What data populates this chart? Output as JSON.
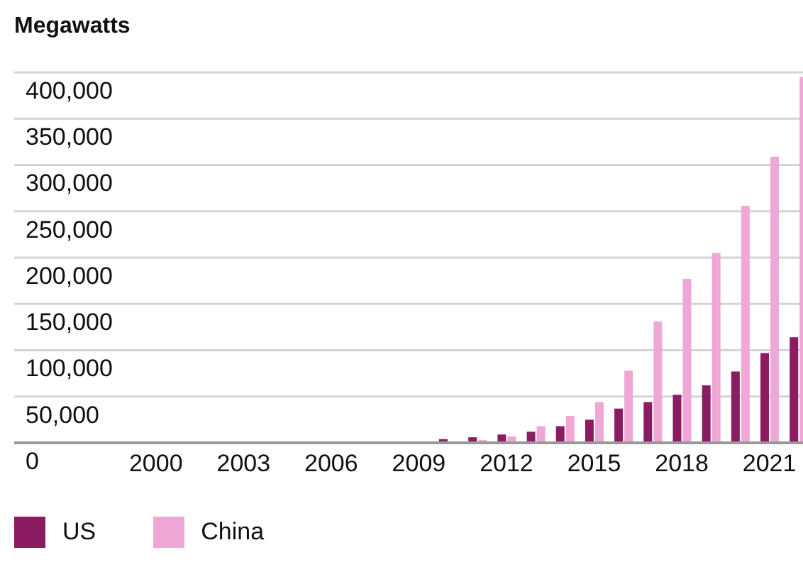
{
  "chart_data": {
    "type": "bar",
    "title": "Megawatts",
    "categories": [
      "2000",
      null,
      null,
      "2003",
      null,
      null,
      "2006",
      null,
      null,
      "2009",
      null,
      null,
      "2012",
      null,
      null,
      "2015",
      null,
      null,
      "2018",
      null,
      null,
      "2021",
      null
    ],
    "series": [
      {
        "name": "US",
        "color": "#8b1c62",
        "values": [
          0,
          0,
          0,
          0,
          0,
          0,
          0,
          0,
          0,
          1000,
          4000,
          6000,
          9000,
          12000,
          18000,
          25000,
          37000,
          44000,
          52000,
          62000,
          77000,
          97000,
          114000
        ]
      },
      {
        "name": "China",
        "color": "#efa8d6",
        "values": [
          0,
          0,
          0,
          0,
          0,
          0,
          0,
          0,
          0,
          0,
          1000,
          3000,
          7000,
          18000,
          29000,
          44000,
          78000,
          131000,
          177000,
          205000,
          256000,
          309000,
          395000
        ]
      }
    ],
    "ylim": [
      0,
      400000
    ],
    "yticks": [
      0,
      {
        "value": 50000,
        "label": "50,000"
      },
      {
        "value": 100000,
        "label": "100,000"
      },
      {
        "value": 150000,
        "label": "150,000"
      },
      {
        "value": 200000,
        "label": "200,000"
      },
      {
        "value": 250000,
        "label": "250,000"
      },
      {
        "value": 300000,
        "label": "300,000"
      },
      {
        "value": 350000,
        "label": "350,000"
      },
      {
        "value": 400000,
        "label": "400,000"
      }
    ],
    "grid": "y",
    "legend": "bottom left"
  }
}
